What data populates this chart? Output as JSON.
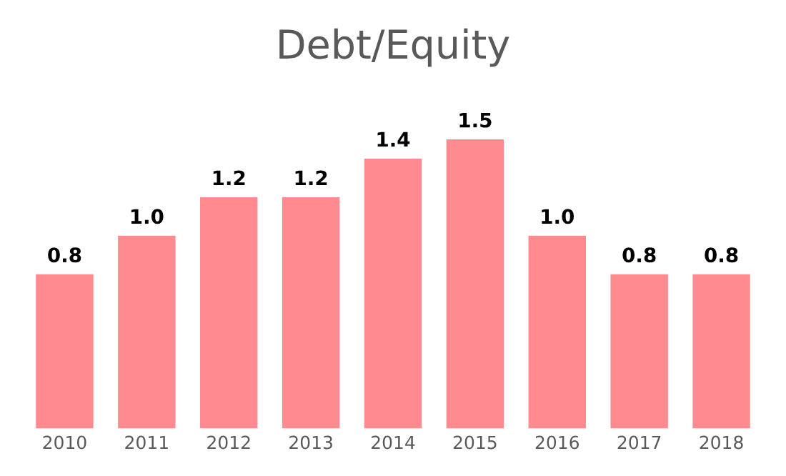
{
  "chart_data": {
    "type": "bar",
    "title": "Debt/Equity",
    "categories": [
      "2010",
      "2011",
      "2012",
      "2013",
      "2014",
      "2015",
      "2016",
      "2017",
      "2018"
    ],
    "values": [
      0.8,
      1.0,
      1.2,
      1.2,
      1.4,
      1.5,
      1.0,
      0.8,
      0.8
    ],
    "value_labels": [
      "0.8",
      "1.0",
      "1.2",
      "1.2",
      "1.4",
      "1.5",
      "1.0",
      "0.8",
      "0.8"
    ],
    "color": "#ff8a8f",
    "grid": false,
    "legend": false
  }
}
